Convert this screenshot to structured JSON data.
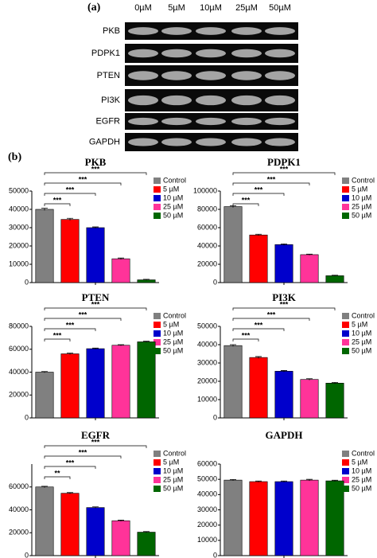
{
  "gel": {
    "panel_label": "(a)",
    "columns": [
      "0µM",
      "5µM",
      "10µM",
      "25µM",
      "50µM"
    ],
    "rows": [
      "PKB",
      "PDPK1",
      "PTEN",
      "PI3K",
      "EGFR",
      "GAPDH"
    ]
  },
  "panel_b_label": "(b)",
  "chart_data": [
    {
      "type": "bar",
      "title": "PKB",
      "ylim": [
        0,
        50000
      ],
      "yticks": [
        0,
        10000,
        20000,
        30000,
        40000,
        50000
      ],
      "series": [
        {
          "name": "Control",
          "color": "#808080",
          "values": [
            40000
          ],
          "errors": [
            600
          ]
        },
        {
          "name": "5 µM",
          "color": "#ff0000",
          "values": [
            34500
          ],
          "errors": [
            600
          ]
        },
        {
          "name": "10 µM",
          "color": "#0000cc",
          "values": [
            30000
          ],
          "errors": [
            400
          ]
        },
        {
          "name": "25 µM",
          "color": "#ff3399",
          "values": [
            13000
          ],
          "errors": [
            400
          ]
        },
        {
          "name": "50 µM",
          "color": "#006600",
          "values": [
            1500
          ],
          "errors": [
            300
          ]
        }
      ],
      "annotations": [
        "***",
        "***",
        "***",
        "***"
      ]
    },
    {
      "type": "bar",
      "title": "PDPK1",
      "ylim": [
        0,
        100000
      ],
      "yticks": [
        0,
        20000,
        40000,
        60000,
        80000,
        100000
      ],
      "series": [
        {
          "name": "Control",
          "color": "#808080",
          "values": [
            83000
          ],
          "errors": [
            1000
          ]
        },
        {
          "name": "5 µM",
          "color": "#ff0000",
          "values": [
            52000
          ],
          "errors": [
            800
          ]
        },
        {
          "name": "10 µM",
          "color": "#0000cc",
          "values": [
            41500
          ],
          "errors": [
            800
          ]
        },
        {
          "name": "25 µM",
          "color": "#ff3399",
          "values": [
            30500
          ],
          "errors": [
            600
          ]
        },
        {
          "name": "50 µM",
          "color": "#006600",
          "values": [
            7500
          ],
          "errors": [
            500
          ]
        }
      ],
      "annotations": [
        "***",
        "***",
        "***",
        "***"
      ]
    },
    {
      "type": "bar",
      "title": "PTEN",
      "ylim": [
        0,
        80000
      ],
      "yticks": [
        0,
        20000,
        40000,
        60000,
        80000
      ],
      "series": [
        {
          "name": "Control",
          "color": "#808080",
          "values": [
            40000
          ],
          "errors": [
            500
          ]
        },
        {
          "name": "5 µM",
          "color": "#ff0000",
          "values": [
            56000
          ],
          "errors": [
            600
          ]
        },
        {
          "name": "10 µM",
          "color": "#0000cc",
          "values": [
            60500
          ],
          "errors": [
            500
          ]
        },
        {
          "name": "25 µM",
          "color": "#ff3399",
          "values": [
            63500
          ],
          "errors": [
            500
          ]
        },
        {
          "name": "50 µM",
          "color": "#006600",
          "values": [
            66500
          ],
          "errors": [
            500
          ]
        }
      ],
      "annotations": [
        "***",
        "***",
        "***",
        "***"
      ]
    },
    {
      "type": "bar",
      "title": "PI3K",
      "ylim": [
        0,
        50000
      ],
      "yticks": [
        0,
        10000,
        20000,
        30000,
        40000,
        50000
      ],
      "series": [
        {
          "name": "Control",
          "color": "#808080",
          "values": [
            39500
          ],
          "errors": [
            500
          ]
        },
        {
          "name": "5 µM",
          "color": "#ff0000",
          "values": [
            33000
          ],
          "errors": [
            500
          ]
        },
        {
          "name": "10 µM",
          "color": "#0000cc",
          "values": [
            25500
          ],
          "errors": [
            400
          ]
        },
        {
          "name": "25 µM",
          "color": "#ff3399",
          "values": [
            21000
          ],
          "errors": [
            400
          ]
        },
        {
          "name": "50 µM",
          "color": "#006600",
          "values": [
            19000
          ],
          "errors": [
            400
          ]
        }
      ],
      "annotations": [
        "***",
        "***",
        "***",
        "***"
      ]
    },
    {
      "type": "bar",
      "title": "EGFR",
      "ylim": [
        0,
        80000
      ],
      "yticks": [
        0,
        20000,
        40000,
        60000
      ],
      "series": [
        {
          "name": "Control",
          "color": "#808080",
          "values": [
            60000
          ],
          "errors": [
            600
          ]
        },
        {
          "name": "5 µM",
          "color": "#ff0000",
          "values": [
            54500
          ],
          "errors": [
            600
          ]
        },
        {
          "name": "10 µM",
          "color": "#0000cc",
          "values": [
            42000
          ],
          "errors": [
            600
          ]
        },
        {
          "name": "25 µM",
          "color": "#ff3399",
          "values": [
            30500
          ],
          "errors": [
            500
          ]
        },
        {
          "name": "50 µM",
          "color": "#006600",
          "values": [
            20500
          ],
          "errors": [
            500
          ]
        }
      ],
      "annotations": [
        "**",
        "***",
        "***",
        "***"
      ]
    },
    {
      "type": "bar",
      "title": "GAPDH",
      "ylim": [
        0,
        60000
      ],
      "yticks": [
        0,
        10000,
        20000,
        30000,
        40000,
        50000,
        60000
      ],
      "series": [
        {
          "name": "Control",
          "color": "#808080",
          "values": [
            49500
          ],
          "errors": [
            400
          ]
        },
        {
          "name": "5 µM",
          "color": "#ff0000",
          "values": [
            48500
          ],
          "errors": [
            400
          ]
        },
        {
          "name": "10 µM",
          "color": "#0000cc",
          "values": [
            48500
          ],
          "errors": [
            400
          ]
        },
        {
          "name": "25 µM",
          "color": "#ff3399",
          "values": [
            49500
          ],
          "errors": [
            500
          ]
        },
        {
          "name": "50 µM",
          "color": "#006600",
          "values": [
            49000
          ],
          "errors": [
            400
          ]
        }
      ],
      "annotations": []
    }
  ]
}
